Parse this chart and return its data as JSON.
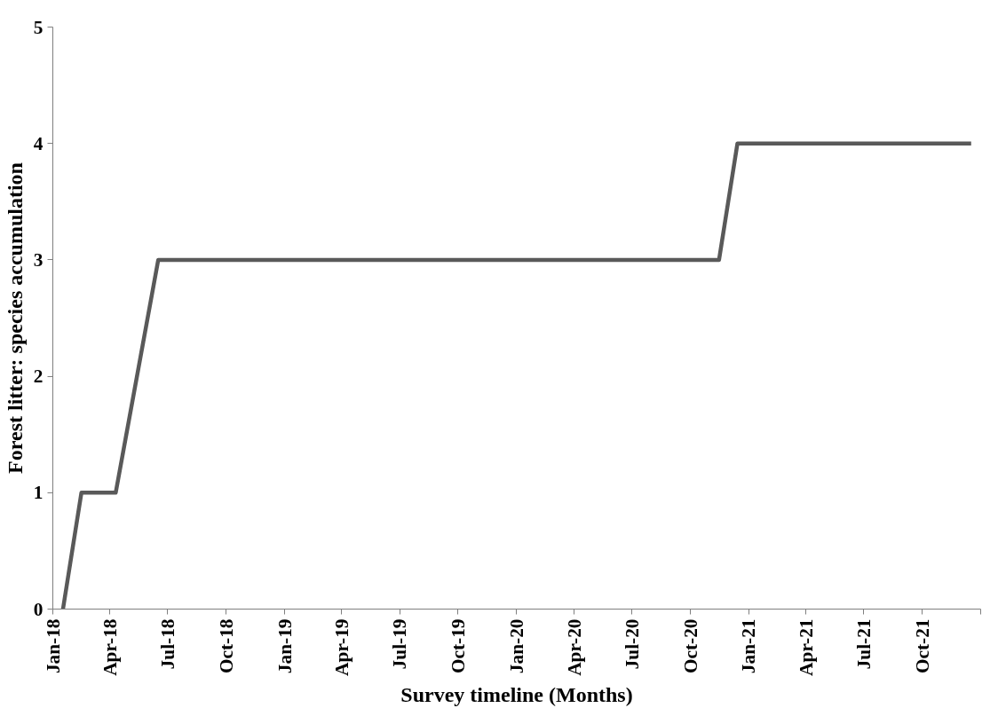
{
  "chart_data": {
    "type": "line",
    "xlabel": "Survey timeline (Months)",
    "ylabel": "Forest litter: species accumulation",
    "x": [
      "2018-01-17",
      "2018-02-15",
      "2018-04-10",
      "2018-06-16",
      "2020-11-15",
      "2020-12-14",
      "2021-12-17"
    ],
    "series": [
      {
        "color": "#595959",
        "values": [
          0,
          1,
          1,
          3,
          3,
          4,
          4
        ]
      }
    ],
    "xlim": [
      "2018-01-01",
      "2022-01-01"
    ],
    "xticks": [
      {
        "value": "2018-01-01",
        "label": "Jan-18"
      },
      {
        "value": "2018-04-01",
        "label": "Apr-18"
      },
      {
        "value": "2018-07-01",
        "label": "Jul-18"
      },
      {
        "value": "2018-10-01",
        "label": "Oct-18"
      },
      {
        "value": "2019-01-01",
        "label": "Jan-19"
      },
      {
        "value": "2019-04-01",
        "label": "Apr-19"
      },
      {
        "value": "2019-07-01",
        "label": "Jul-19"
      },
      {
        "value": "2019-10-01",
        "label": "Oct-19"
      },
      {
        "value": "2020-01-01",
        "label": "Jan-20"
      },
      {
        "value": "2020-04-01",
        "label": "Apr-20"
      },
      {
        "value": "2020-07-01",
        "label": "Jul-20"
      },
      {
        "value": "2020-10-01",
        "label": "Oct-20"
      },
      {
        "value": "2021-01-01",
        "label": "Jan-21"
      },
      {
        "value": "2021-04-01",
        "label": "Apr-21"
      },
      {
        "value": "2021-07-01",
        "label": "Jul-21"
      },
      {
        "value": "2021-10-01",
        "label": "Oct-21"
      },
      {
        "value": "2022-01-01",
        "label": null
      }
    ],
    "ylim": [
      0,
      5
    ],
    "yticks": [
      0,
      1,
      2,
      3,
      4,
      5
    ],
    "grid": false,
    "marker": "none",
    "line_style": "solid"
  }
}
